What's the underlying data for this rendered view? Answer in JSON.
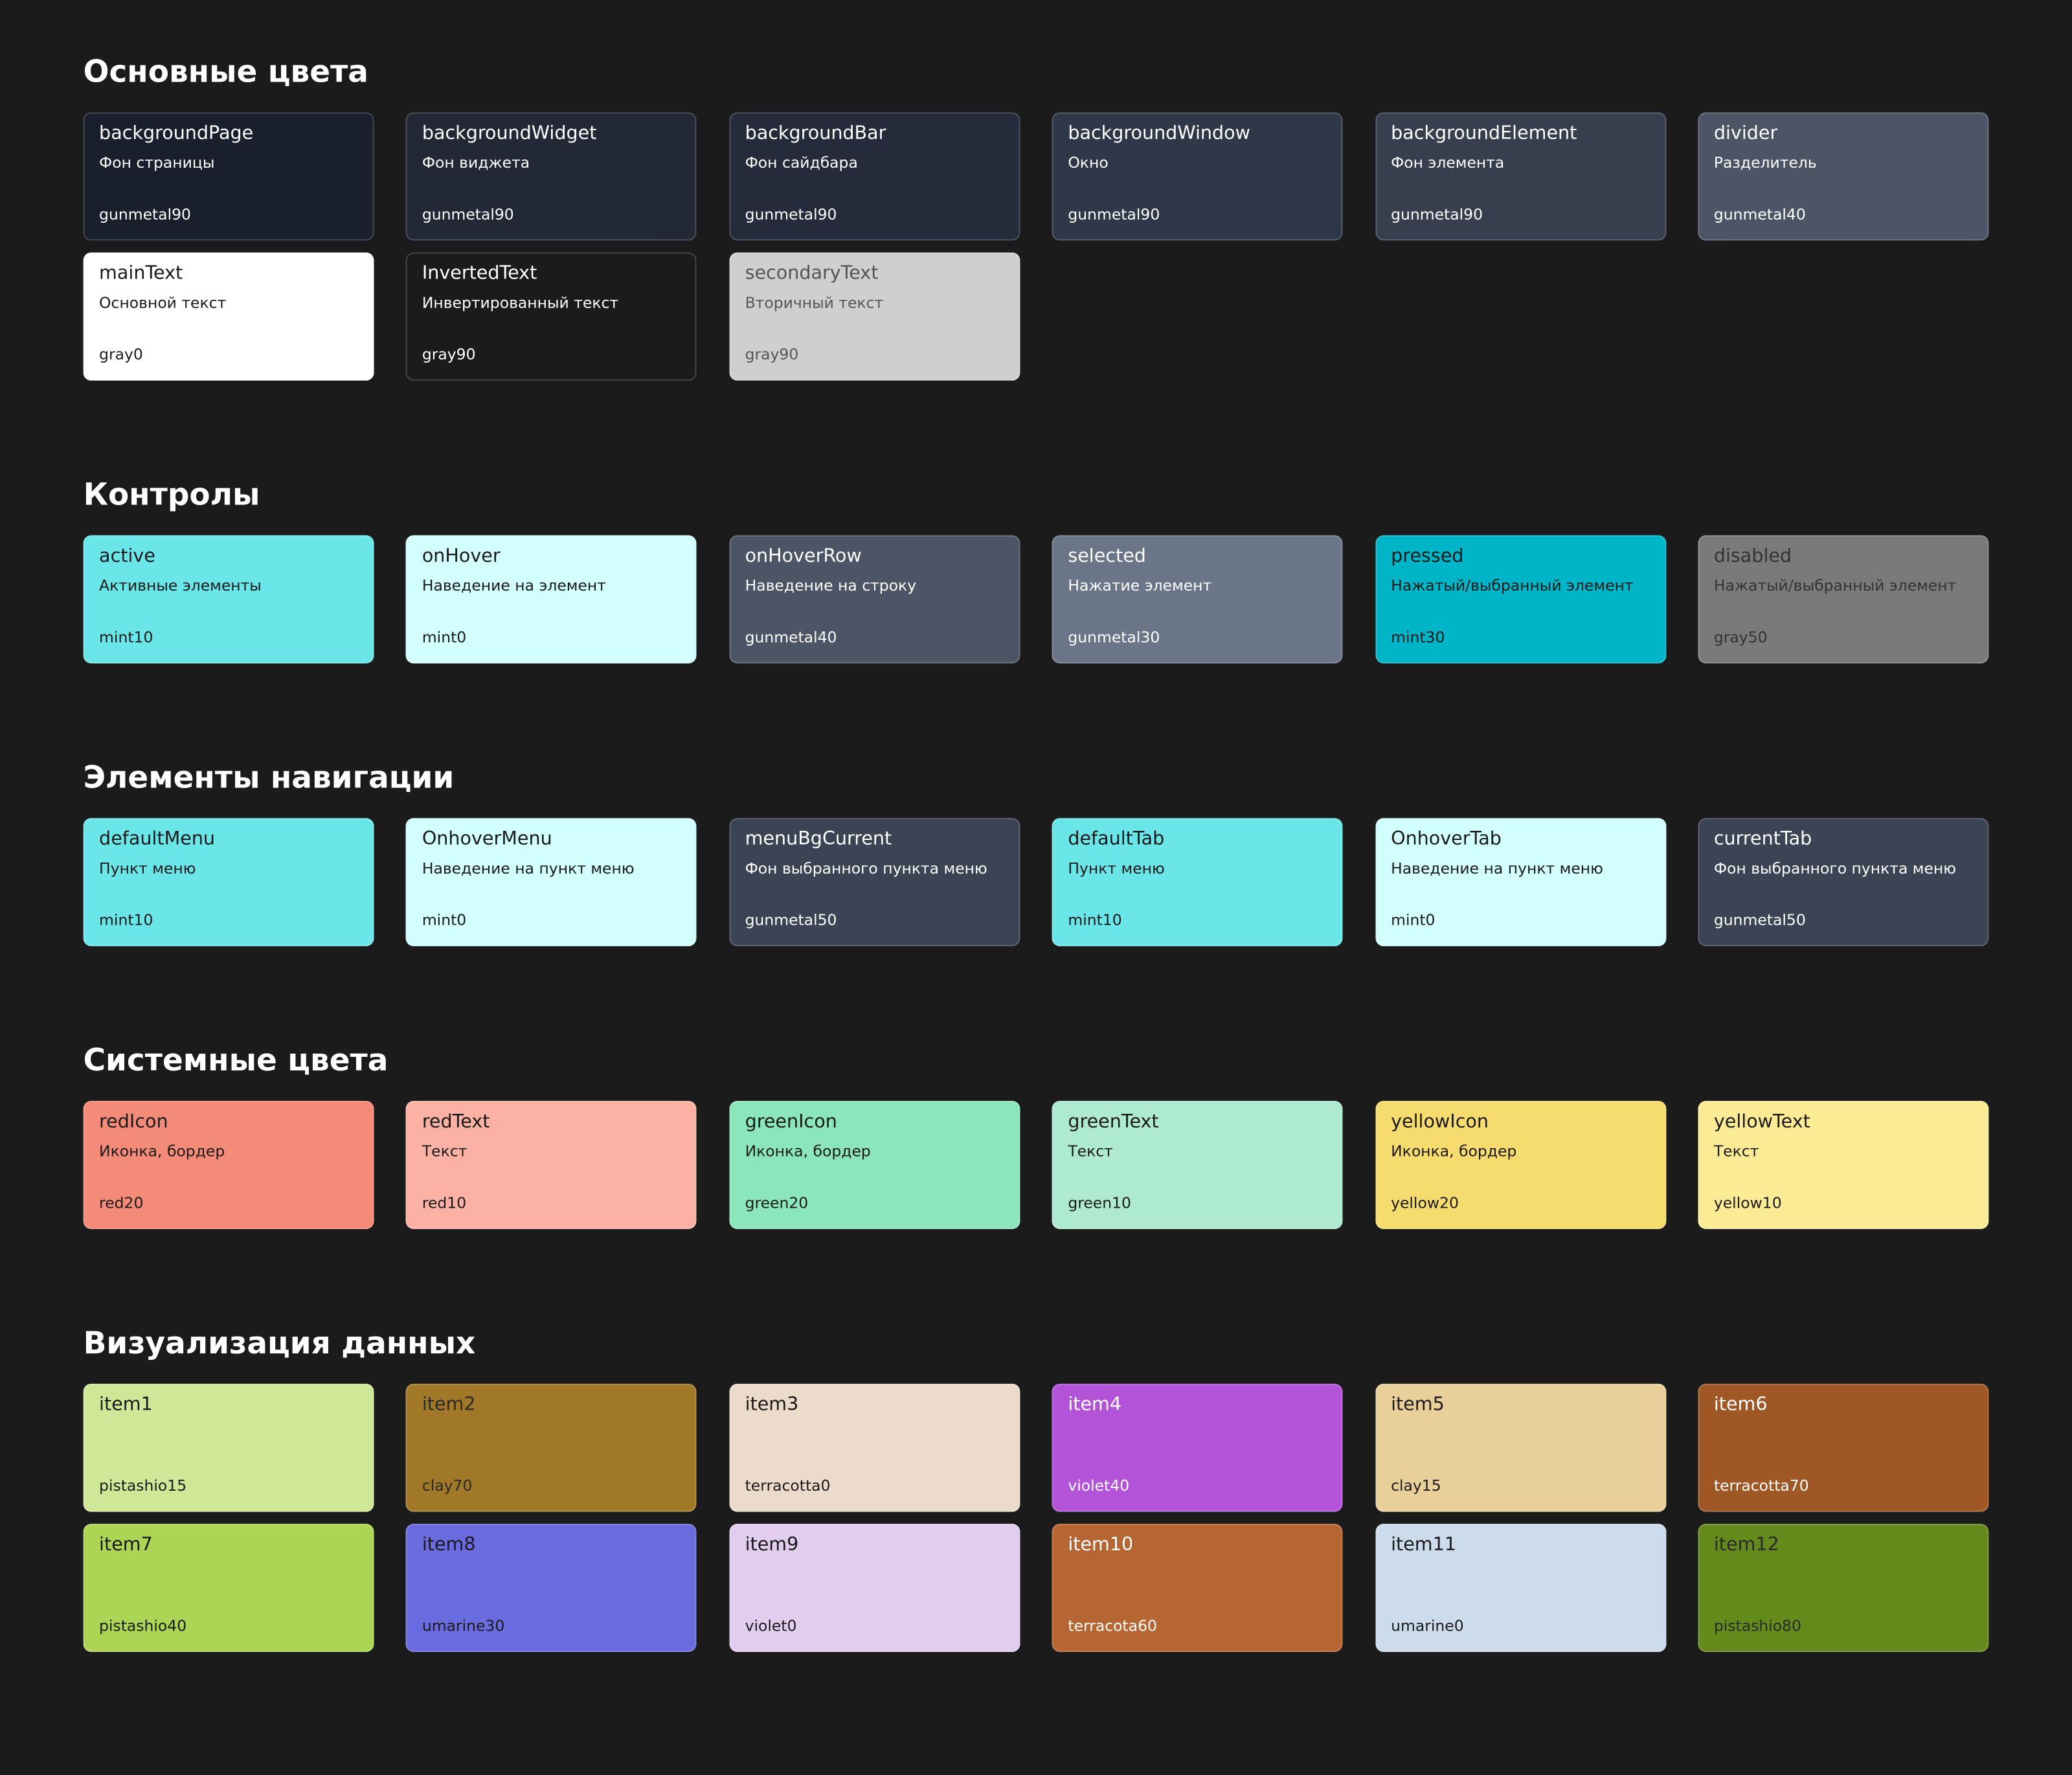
{
  "sections": [
    {
      "title": "Основные цвета",
      "cards": [
        {
          "name": "backgroundPage",
          "desc": "Фон страницы",
          "token": "gunmetal90",
          "color": "#1a1f2e",
          "text_color": "#ffffff"
        },
        {
          "name": "backgroundWidget",
          "desc": "Фон виджета",
          "token": "gunmetal90",
          "color": "#222836",
          "text_color": "#ffffff"
        },
        {
          "name": "backgroundBar",
          "desc": "Фон сайдбара",
          "token": "gunmetal90",
          "color": "#252b3a",
          "text_color": "#ffffff"
        },
        {
          "name": "backgroundWindow",
          "desc": "Окно",
          "token": "gunmetal90",
          "color": "#2f3848",
          "text_color": "#ffffff"
        },
        {
          "name": "backgroundElement",
          "desc": "Фон элемента",
          "token": "gunmetal90",
          "color": "#373f4e",
          "text_color": "#ffffff"
        },
        {
          "name": "divider",
          "desc": "Разделитель",
          "token": "gunmetal40",
          "color": "#4c5566",
          "text_color": "#ffffff"
        },
        {
          "name": "mainText",
          "desc": "Основной текст",
          "token": "gray0",
          "color": "#ffffff",
          "text_color": "#1a1a1a"
        },
        {
          "name": "InvertedText",
          "desc": "Инвертированный текст",
          "token": "gray90",
          "color": "#1b1b1b",
          "text_color": "#ffffff"
        },
        {
          "name": "secondaryText",
          "desc": "Вторичный текст",
          "token": "gray90",
          "color": "#cfcfcf",
          "text_color": "#555555"
        }
      ]
    },
    {
      "title": "Контролы",
      "cards": [
        {
          "name": "active",
          "desc": "Активные элементы",
          "token": "mint10",
          "color": "#6ae6e8",
          "text_color": "#1a1a1a"
        },
        {
          "name": "onHover",
          "desc": "Наведение на элемент",
          "token": "mint0",
          "color": "#d2fefe",
          "text_color": "#1a1a1a"
        },
        {
          "name": "onHoverRow",
          "desc": "Наведение на строку",
          "token": "gunmetal40",
          "color": "#4c5566",
          "text_color": "#ffffff"
        },
        {
          "name": "selected",
          "desc": "Нажатие элемент",
          "token": "gunmetal30",
          "color": "#6b7588",
          "text_color": "#ffffff"
        },
        {
          "name": "pressed",
          "desc": "Нажатый/выбранный элемент",
          "token": "mint30",
          "color": "#00b5c7",
          "text_color": "#1a1a1a"
        },
        {
          "name": "disabled",
          "desc": "Нажатый/выбранный элемент",
          "token": "gray50",
          "color": "#7a7a7a",
          "text_color": "#333333"
        }
      ]
    },
    {
      "title": "Элементы навигации",
      "cards": [
        {
          "name": "defaultMenu",
          "desc": "Пункт меню",
          "token": "mint10",
          "color": "#6ae6e8",
          "text_color": "#1a1a1a"
        },
        {
          "name": "OnhoverMenu",
          "desc": "Наведение на пункт меню",
          "token": "mint0",
          "color": "#d2fefe",
          "text_color": "#1a1a1a"
        },
        {
          "name": "menuBgCurrent",
          "desc": "Фон выбранного пункта меню",
          "token": "gunmetal50",
          "color": "#3b4454",
          "text_color": "#ffffff"
        },
        {
          "name": "defaultTab",
          "desc": "Пункт меню",
          "token": "mint10",
          "color": "#6ae6e8",
          "text_color": "#1a1a1a"
        },
        {
          "name": "OnhoverTab",
          "desc": "Наведение на пункт меню",
          "token": "mint0",
          "color": "#d2fefe",
          "text_color": "#1a1a1a"
        },
        {
          "name": "currentTab",
          "desc": "Фон выбранного пункта меню",
          "token": "gunmetal50",
          "color": "#3b4454",
          "text_color": "#ffffff"
        }
      ]
    },
    {
      "title": "Системные цвета",
      "cards": [
        {
          "name": "redIcon",
          "desc": "Иконка, бордер",
          "token": "red20",
          "color": "#f48a78",
          "text_color": "#1a1a1a"
        },
        {
          "name": "redText",
          "desc": "Текст",
          "token": "red10",
          "color": "#fbb1a4",
          "text_color": "#1a1a1a"
        },
        {
          "name": "greenIcon",
          "desc": "Иконка, бордер",
          "token": "green20",
          "color": "#8be6bb",
          "text_color": "#1a1a1a"
        },
        {
          "name": "greenText",
          "desc": "Текст",
          "token": "green10",
          "color": "#aeead0",
          "text_color": "#1a1a1a"
        },
        {
          "name": "yellowIcon",
          "desc": "Иконка, бордер",
          "token": "yellow20",
          "color": "#f6dc6e",
          "text_color": "#1a1a1a"
        },
        {
          "name": "yellowText",
          "desc": "Текст",
          "token": "yellow10",
          "color": "#fbeb95",
          "text_color": "#1a1a1a"
        }
      ]
    },
    {
      "title": "Визуализация данных",
      "cards": [
        {
          "name": "item1",
          "token": "pistashio15",
          "color": "#cfe898",
          "text_color": "#1a1a1a"
        },
        {
          "name": "item2",
          "token": "clay70",
          "color": "#a07828",
          "text_color": "#2a2a2a"
        },
        {
          "name": "item3",
          "token": "terracotta0",
          "color": "#ecdacb",
          "text_color": "#1a1a1a"
        },
        {
          "name": "item4",
          "token": "violet40",
          "color": "#b354d8",
          "text_color": "#ffffff"
        },
        {
          "name": "item5",
          "token": "clay15",
          "color": "#e9cf99",
          "text_color": "#1a1a1a"
        },
        {
          "name": "item6",
          "token": "terracotta70",
          "color": "#a05726",
          "text_color": "#ffffff"
        },
        {
          "name": "item7",
          "token": "pistashio40",
          "color": "#acd555",
          "text_color": "#1a1a1a"
        },
        {
          "name": "item8",
          "token": "umarine30",
          "color": "#6b6be0",
          "text_color": "#1a1a1a"
        },
        {
          "name": "item9",
          "token": "violet0",
          "color": "#e3cdee",
          "text_color": "#1a1a1a"
        },
        {
          "name": "item10",
          "token": "terracota60",
          "color": "#b56632",
          "text_color": "#ffffff"
        },
        {
          "name": "item11",
          "token": "umarine0",
          "color": "#cddcec",
          "text_color": "#1a1a1a"
        },
        {
          "name": "item12",
          "token": "pistashio80",
          "color": "#648a1c",
          "text_color": "#2a2a2a"
        }
      ]
    }
  ]
}
